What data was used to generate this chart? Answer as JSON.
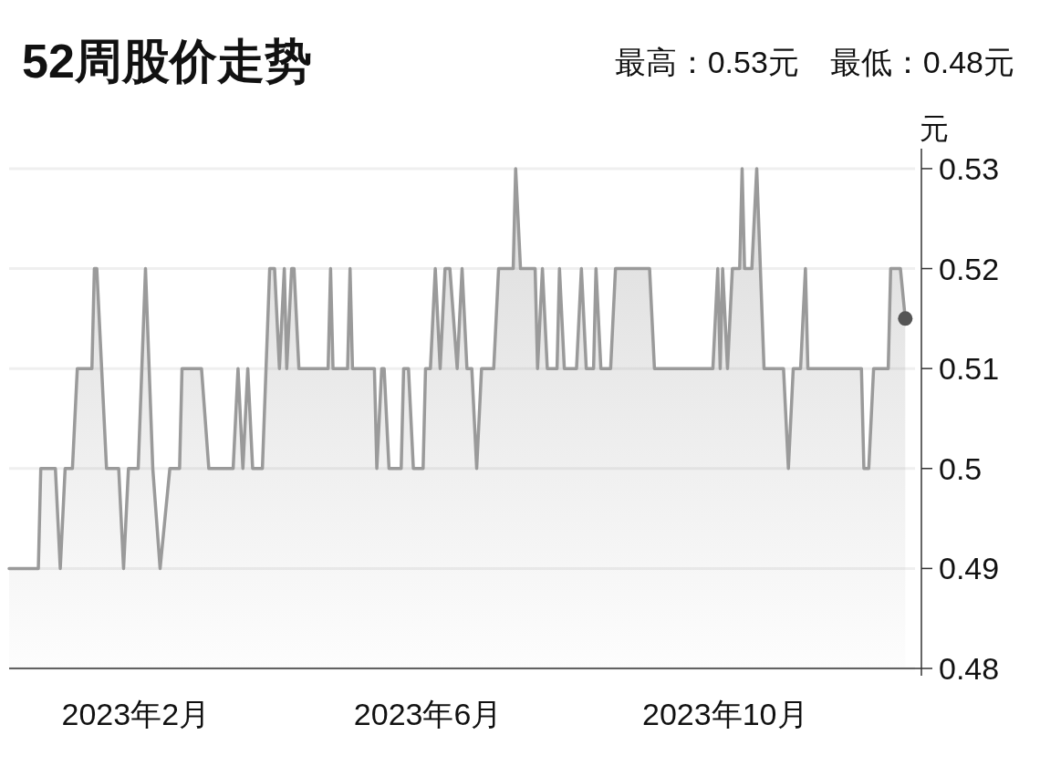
{
  "chart_data": {
    "type": "area",
    "title": "52周股价走势",
    "subtitle": "最高：0.53元　最低：0.48元",
    "ylabel": "元",
    "x": [
      "2022-12-11",
      "2022-12-23",
      "2022-12-24",
      "2022-12-30",
      "2023-01-01",
      "2023-01-03",
      "2023-01-06",
      "2023-01-08",
      "2023-01-14",
      "2023-01-15",
      "2023-01-16",
      "2023-01-20",
      "2023-01-25",
      "2023-01-27",
      "2023-01-29",
      "2023-02-02",
      "2023-02-05",
      "2023-02-08",
      "2023-02-11",
      "2023-02-15",
      "2023-02-19",
      "2023-02-20",
      "2023-02-28",
      "2023-03-03",
      "2023-03-13",
      "2023-03-15",
      "2023-03-17",
      "2023-03-19",
      "2023-03-21",
      "2023-03-25",
      "2023-03-28",
      "2023-03-30",
      "2023-04-01",
      "2023-04-03",
      "2023-04-04",
      "2023-04-06",
      "2023-04-07",
      "2023-04-09",
      "2023-04-21",
      "2023-04-22",
      "2023-04-23",
      "2023-04-29",
      "2023-04-30",
      "2023-05-01",
      "2023-05-10",
      "2023-05-11",
      "2023-05-13",
      "2023-05-14",
      "2023-05-16",
      "2023-05-21",
      "2023-05-22",
      "2023-05-24",
      "2023-05-26",
      "2023-05-30",
      "2023-05-31",
      "2023-06-02",
      "2023-06-04",
      "2023-06-06",
      "2023-06-08",
      "2023-06-10",
      "2023-06-13",
      "2023-06-15",
      "2023-06-17",
      "2023-06-19",
      "2023-06-21",
      "2023-06-23",
      "2023-06-28",
      "2023-06-30",
      "2023-07-06",
      "2023-07-07",
      "2023-07-09",
      "2023-07-15",
      "2023-07-16",
      "2023-07-18",
      "2023-07-20",
      "2023-07-24",
      "2023-07-25",
      "2023-07-27",
      "2023-08-01",
      "2023-08-03",
      "2023-08-05",
      "2023-08-08",
      "2023-08-09",
      "2023-08-11",
      "2023-08-15",
      "2023-08-17",
      "2023-08-31",
      "2023-09-02",
      "2023-09-26",
      "2023-09-28",
      "2023-09-29",
      "2023-09-30",
      "2023-10-02",
      "2023-10-04",
      "2023-10-07",
      "2023-10-08",
      "2023-10-09",
      "2023-10-12",
      "2023-10-14",
      "2023-10-17",
      "2023-10-25",
      "2023-10-27",
      "2023-10-29",
      "2023-11-01",
      "2023-11-03",
      "2023-11-04",
      "2023-11-26",
      "2023-11-27",
      "2023-11-29",
      "2023-12-01",
      "2023-12-07",
      "2023-12-08",
      "2023-12-12",
      "2023-12-14"
    ],
    "series": [
      {
        "color": "#9a9a9a",
        "values": [
          0.49,
          0.49,
          0.5,
          0.5,
          0.49,
          0.5,
          0.5,
          0.51,
          0.51,
          0.52,
          0.52,
          0.5,
          0.5,
          0.49,
          0.5,
          0.5,
          0.52,
          0.5,
          0.49,
          0.5,
          0.5,
          0.51,
          0.51,
          0.5,
          0.5,
          0.51,
          0.5,
          0.51,
          0.5,
          0.5,
          0.52,
          0.52,
          0.51,
          0.52,
          0.51,
          0.52,
          0.52,
          0.51,
          0.51,
          0.52,
          0.51,
          0.51,
          0.52,
          0.51,
          0.51,
          0.5,
          0.51,
          0.51,
          0.5,
          0.5,
          0.51,
          0.51,
          0.5,
          0.5,
          0.51,
          0.51,
          0.52,
          0.51,
          0.52,
          0.52,
          0.51,
          0.52,
          0.51,
          0.51,
          0.5,
          0.51,
          0.51,
          0.52,
          0.52,
          0.53,
          0.52,
          0.52,
          0.51,
          0.52,
          0.51,
          0.51,
          0.52,
          0.51,
          0.51,
          0.52,
          0.51,
          0.51,
          0.52,
          0.51,
          0.51,
          0.52,
          0.52,
          0.51,
          0.51,
          0.52,
          0.51,
          0.52,
          0.51,
          0.52,
          0.52,
          0.53,
          0.52,
          0.52,
          0.53,
          0.51,
          0.51,
          0.5,
          0.51,
          0.51,
          0.52,
          0.51,
          0.51,
          0.5,
          0.5,
          0.51,
          0.51,
          0.52,
          0.52,
          0.515
        ]
      },
      {
        "type": "scatter",
        "x": [
          "2023-12-14"
        ],
        "color": "#555555",
        "values": [
          0.515
        ]
      }
    ],
    "xlim": [
      "2022-12-11",
      "2023-12-18"
    ],
    "xticks": [
      {
        "value": "2023-02-01",
        "label": "2023年2月"
      },
      {
        "value": "2023-06-01",
        "label": "2023年6月"
      },
      {
        "value": "2023-10-01",
        "label": "2023年10月"
      }
    ],
    "ylim": [
      0.48,
      0.532
    ],
    "yticks": [
      0.48,
      0.49,
      0.5,
      0.51,
      0.52,
      0.53
    ],
    "grid": "y"
  }
}
